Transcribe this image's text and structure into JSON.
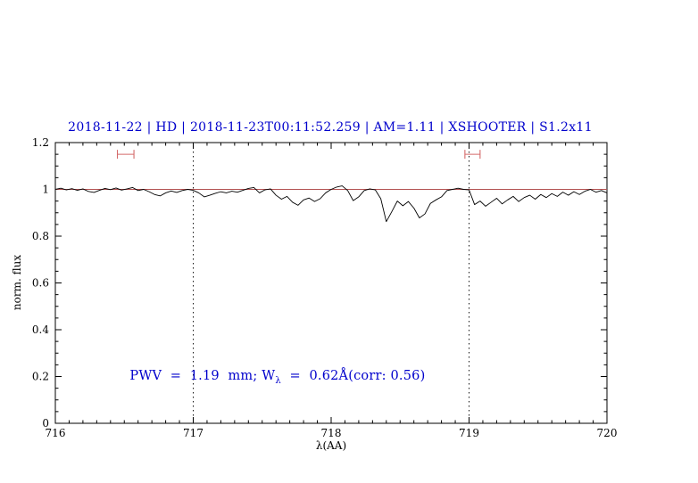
{
  "chart_data": {
    "type": "line",
    "title": "2018-11-22 | HD | 2018-11-23T00:11:52.259 | AM=1.11 | XSHOOTER | S1.2x11",
    "title_color": "#0000cc",
    "xlabel": "λ(AA)",
    "ylabel": "norm. flux",
    "xlim": [
      716,
      720
    ],
    "ylim": [
      0,
      1.2
    ],
    "x_ticks": [
      716,
      717,
      718,
      719,
      720
    ],
    "x_tick_labels": [
      "716",
      "717",
      "718",
      "719",
      "720"
    ],
    "y_ticks": [
      0,
      0.2,
      0.4,
      0.6,
      0.8,
      1,
      1.2
    ],
    "y_tick_labels": [
      "0",
      "0.2",
      "0.4",
      "0.6",
      "0.8",
      "1",
      "1.2"
    ],
    "x_minor_step": 0.1,
    "y_minor_step": 0.05,
    "grid": false,
    "vlines": [
      {
        "x": 717,
        "style": "dotted",
        "color": "#000000"
      },
      {
        "x": 719,
        "style": "dotted",
        "color": "#000000"
      }
    ],
    "continuum": {
      "name": "continuum-fit",
      "x": [
        716,
        720
      ],
      "y": [
        1,
        1
      ],
      "color": "#b25050"
    },
    "pwv_markers": [
      {
        "x_start": 716.45,
        "x_end": 716.57,
        "y": 1.15,
        "color": "#d46a6a"
      },
      {
        "x_start": 718.97,
        "x_end": 719.08,
        "y": 1.15,
        "color": "#d46a6a"
      }
    ],
    "annotation": {
      "prefix": "PWV  =  1.19  mm; W",
      "sub": "λ",
      "suffix": "  =  0.62Å(corr: 0.56)",
      "color": "#0000cc",
      "x": 716.54,
      "y": 0.18
    },
    "series": [
      {
        "name": "observed-spectrum",
        "color": "#000000",
        "x": [
          716.0,
          716.04,
          716.08,
          716.12,
          716.16,
          716.2,
          716.24,
          716.28,
          716.32,
          716.36,
          716.4,
          716.44,
          716.48,
          716.52,
          716.56,
          716.6,
          716.64,
          716.68,
          716.72,
          716.76,
          716.8,
          716.84,
          716.88,
          716.92,
          716.96,
          717.0,
          717.04,
          717.08,
          717.12,
          717.16,
          717.2,
          717.24,
          717.28,
          717.32,
          717.36,
          717.4,
          717.44,
          717.48,
          717.52,
          717.56,
          717.6,
          717.64,
          717.68,
          717.72,
          717.76,
          717.8,
          717.84,
          717.88,
          717.92,
          717.96,
          718.0,
          718.04,
          718.08,
          718.12,
          718.16,
          718.2,
          718.24,
          718.28,
          718.32,
          718.36,
          718.4,
          718.44,
          718.48,
          718.52,
          718.56,
          718.6,
          718.64,
          718.68,
          718.72,
          718.76,
          718.8,
          718.84,
          718.88,
          718.92,
          718.96,
          719.0,
          719.04,
          719.08,
          719.12,
          719.16,
          719.2,
          719.24,
          719.28,
          719.32,
          719.36,
          719.4,
          719.44,
          719.48,
          719.52,
          719.56,
          719.6,
          719.64,
          719.68,
          719.72,
          719.76,
          719.8,
          719.84,
          719.88,
          719.92,
          719.96,
          720.0
        ],
        "y": [
          1.0,
          1.005,
          0.998,
          1.003,
          0.996,
          1.002,
          0.991,
          0.987,
          0.996,
          1.004,
          0.999,
          1.006,
          0.997,
          1.002,
          1.008,
          0.995,
          1.0,
          0.99,
          0.978,
          0.972,
          0.985,
          0.993,
          0.987,
          0.995,
          1.0,
          0.996,
          0.985,
          0.968,
          0.975,
          0.983,
          0.99,
          0.985,
          0.992,
          0.988,
          0.996,
          1.004,
          1.008,
          0.985,
          0.998,
          1.002,
          0.975,
          0.958,
          0.97,
          0.945,
          0.932,
          0.955,
          0.963,
          0.948,
          0.96,
          0.985,
          1.0,
          1.01,
          1.015,
          0.995,
          0.952,
          0.968,
          0.995,
          1.002,
          0.998,
          0.96,
          0.862,
          0.905,
          0.95,
          0.93,
          0.948,
          0.92,
          0.878,
          0.895,
          0.94,
          0.955,
          0.968,
          0.995,
          1.0,
          1.005,
          1.0,
          0.998,
          0.935,
          0.95,
          0.928,
          0.945,
          0.962,
          0.938,
          0.955,
          0.97,
          0.948,
          0.965,
          0.975,
          0.958,
          0.978,
          0.965,
          0.982,
          0.97,
          0.988,
          0.975,
          0.99,
          0.978,
          0.992,
          1.0,
          0.988,
          0.995,
          0.985
        ]
      }
    ]
  }
}
